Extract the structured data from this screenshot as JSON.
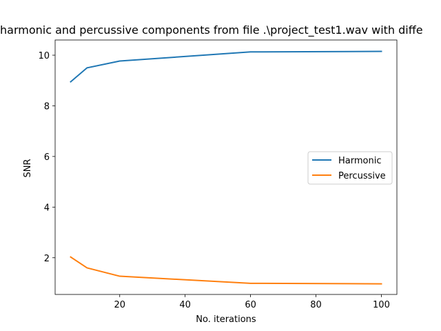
{
  "chart_data": {
    "type": "line",
    "title": "harmonic and percussive components from file .\\project_test1.wav with diffe",
    "xlabel": "No. iterations",
    "ylabel": "SNR",
    "xlim": [
      0.25,
      104.75
    ],
    "ylim": [
      0.55,
      10.6
    ],
    "xticks": [
      20,
      40,
      60,
      80,
      100
    ],
    "yticks": [
      2,
      4,
      6,
      8,
      10
    ],
    "grid": false,
    "legend_position": "center-right",
    "series": [
      {
        "name": "Harmonic",
        "color": "#1f77b4",
        "x": [
          5,
          10,
          20,
          60,
          100
        ],
        "y": [
          8.95,
          9.5,
          9.77,
          10.13,
          10.15
        ]
      },
      {
        "name": "Percussive",
        "color": "#ff7f0e",
        "x": [
          5,
          10,
          20,
          60,
          100
        ],
        "y": [
          2.03,
          1.6,
          1.27,
          0.99,
          0.97
        ]
      }
    ]
  }
}
